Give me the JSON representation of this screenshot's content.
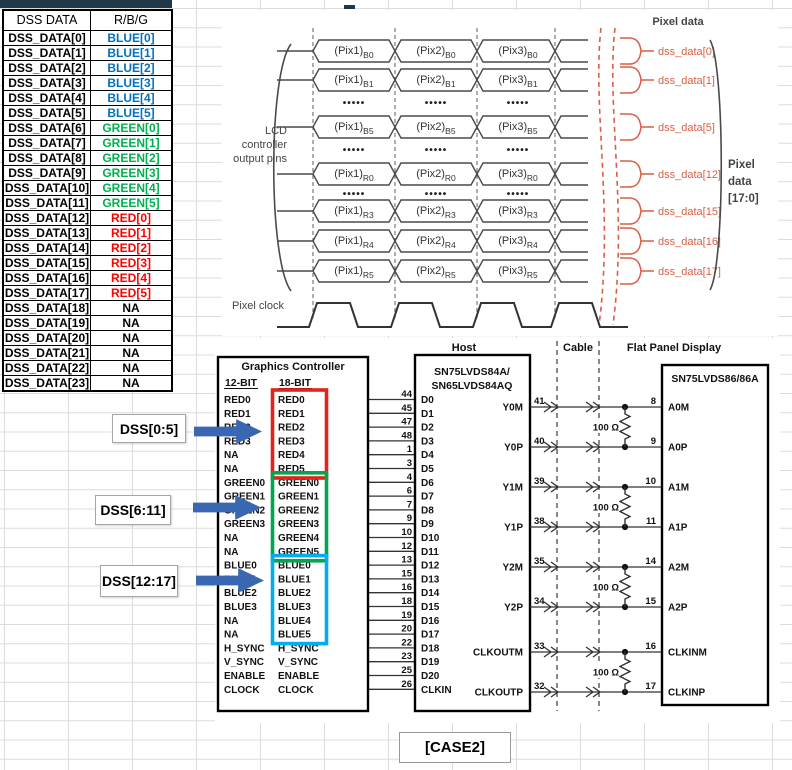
{
  "mapping_table": {
    "headers": [
      "DSS DATA",
      "R/B/G"
    ],
    "rows": [
      {
        "signal": "DSS_DATA[0]",
        "map": "BLUE[0]",
        "color": "#0070C0"
      },
      {
        "signal": "DSS_DATA[1]",
        "map": "BLUE[1]",
        "color": "#0070C0"
      },
      {
        "signal": "DSS_DATA[2]",
        "map": "BLUE[2]",
        "color": "#0070C0"
      },
      {
        "signal": "DSS_DATA[3]",
        "map": "BLUE[3]",
        "color": "#0070C0"
      },
      {
        "signal": "DSS_DATA[4]",
        "map": "BLUE[4]",
        "color": "#0070C0"
      },
      {
        "signal": "DSS_DATA[5]",
        "map": "BLUE[5]",
        "color": "#0070C0"
      },
      {
        "signal": "DSS_DATA[6]",
        "map": "GREEN[0]",
        "color": "#00B050"
      },
      {
        "signal": "DSS_DATA[7]",
        "map": "GREEN[1]",
        "color": "#00B050"
      },
      {
        "signal": "DSS_DATA[8]",
        "map": "GREEN[2]",
        "color": "#00B050"
      },
      {
        "signal": "DSS_DATA[9]",
        "map": "GREEN[3]",
        "color": "#00B050"
      },
      {
        "signal": "DSS_DATA[10]",
        "map": "GREEN[4]",
        "color": "#00B050"
      },
      {
        "signal": "DSS_DATA[11]",
        "map": "GREEN[5]",
        "color": "#00B050"
      },
      {
        "signal": "DSS_DATA[12]",
        "map": "RED[0]",
        "color": "#FF0000"
      },
      {
        "signal": "DSS_DATA[13]",
        "map": "RED[1]",
        "color": "#FF0000"
      },
      {
        "signal": "DSS_DATA[14]",
        "map": "RED[2]",
        "color": "#FF0000"
      },
      {
        "signal": "DSS_DATA[15]",
        "map": "RED[3]",
        "color": "#FF0000"
      },
      {
        "signal": "DSS_DATA[16]",
        "map": "RED[4]",
        "color": "#FF0000"
      },
      {
        "signal": "DSS_DATA[17]",
        "map": "RED[5]",
        "color": "#FF0000"
      },
      {
        "signal": "DSS_DATA[18]",
        "map": "NA",
        "color": "#000000"
      },
      {
        "signal": "DSS_DATA[19]",
        "map": "NA",
        "color": "#000000"
      },
      {
        "signal": "DSS_DATA[20]",
        "map": "NA",
        "color": "#000000"
      },
      {
        "signal": "DSS_DATA[21]",
        "map": "NA",
        "color": "#000000"
      },
      {
        "signal": "DSS_DATA[22]",
        "map": "NA",
        "color": "#000000"
      },
      {
        "signal": "DSS_DATA[23]",
        "map": "NA",
        "color": "#000000"
      }
    ]
  },
  "timing": {
    "title": "Pixel data",
    "left_label_lines": [
      "LCD",
      "controller",
      "output pins"
    ],
    "clock_label": "Pixel clock",
    "pixel_prefixes": [
      "(Pix1)",
      "(Pix2)",
      "(Pix3)"
    ],
    "dots": "•••••",
    "rows": [
      {
        "type": "bus",
        "bit": "B0",
        "dss": "dss_data[0]"
      },
      {
        "type": "bus",
        "bit": "B1",
        "dss": "dss_data[1]"
      },
      {
        "type": "dots"
      },
      {
        "type": "bus",
        "bit": "B5",
        "dss": "dss_data[5]"
      },
      {
        "type": "dots"
      },
      {
        "type": "bus",
        "bit": "R0",
        "dss": "dss_data[12]"
      },
      {
        "type": "dots"
      },
      {
        "type": "bus",
        "bit": "R3",
        "dss": "dss_data[15]"
      },
      {
        "type": "bus",
        "bit": "R4",
        "dss": "dss_data[16]"
      },
      {
        "type": "bus",
        "bit": "R5",
        "dss": "dss_data[17]"
      }
    ],
    "bus_label_lines": [
      "Pixel",
      "data",
      "[17:0]"
    ],
    "accent": "#D95F43"
  },
  "callouts": [
    {
      "label": "DSS[0:5]"
    },
    {
      "label": "DSS[6:11]"
    },
    {
      "label": "DSS[12:17]"
    }
  ],
  "callout_arrow_color": "#3A67B1",
  "circuit": {
    "section_headers": {
      "host": "Host",
      "cable": "Cable",
      "display": "Flat Panel Display"
    },
    "graphics_controller": {
      "title": "Graphics Controller",
      "columns": [
        "12-BIT",
        "18-BIT"
      ],
      "rows": [
        {
          "b12": "RED0",
          "b18": "RED0",
          "pin": "44"
        },
        {
          "b12": "RED1",
          "b18": "RED1",
          "pin": "45"
        },
        {
          "b12": "RED2",
          "b18": "RED2",
          "pin": "47"
        },
        {
          "b12": "RED3",
          "b18": "RED3",
          "pin": "48"
        },
        {
          "b12": "NA",
          "b18": "RED4",
          "pin": "1"
        },
        {
          "b12": "NA",
          "b18": "RED5",
          "pin": "3"
        },
        {
          "b12": "GREEN0",
          "b18": "GREEN0",
          "pin": "4"
        },
        {
          "b12": "GREEN1",
          "b18": "GREEN1",
          "pin": "6"
        },
        {
          "b12": "GREEN2",
          "b18": "GREEN2",
          "pin": "7"
        },
        {
          "b12": "GREEN3",
          "b18": "GREEN3",
          "pin": "9"
        },
        {
          "b12": "NA",
          "b18": "GREEN4",
          "pin": "10"
        },
        {
          "b12": "NA",
          "b18": "GREEN5",
          "pin": "12"
        },
        {
          "b12": "BLUE0",
          "b18": "BLUE0",
          "pin": "13"
        },
        {
          "b12": "BLUE1",
          "b18": "BLUE1",
          "pin": "15"
        },
        {
          "b12": "BLUE2",
          "b18": "BLUE2",
          "pin": "16"
        },
        {
          "b12": "BLUE3",
          "b18": "BLUE3",
          "pin": "18"
        },
        {
          "b12": "NA",
          "b18": "BLUE4",
          "pin": "19"
        },
        {
          "b12": "NA",
          "b18": "BLUE5",
          "pin": "20"
        },
        {
          "b12": "H_SYNC",
          "b18": "H_SYNC",
          "pin": "22"
        },
        {
          "b12": "V_SYNC",
          "b18": "V_SYNC",
          "pin": "23"
        },
        {
          "b12": "ENABLE",
          "b18": "ENABLE",
          "pin": "25"
        },
        {
          "b12": "CLOCK",
          "b18": "CLOCK",
          "pin": "26"
        }
      ],
      "group_colors": {
        "red": "#E2231A",
        "green": "#00A651",
        "blue": "#00AEEF"
      }
    },
    "host_chip": {
      "title_lines": [
        "SN75LVDS84A/",
        "SN65LVDS84AQ"
      ],
      "input_pins": [
        "D0",
        "D1",
        "D2",
        "D3",
        "D4",
        "D5",
        "D6",
        "D7",
        "D8",
        "D9",
        "D10",
        "D11",
        "D12",
        "D13",
        "D14",
        "D15",
        "D16",
        "D17",
        "D18",
        "D19",
        "D20",
        "CLKIN"
      ],
      "output_pins": [
        {
          "name": "Y0M",
          "pin": "41"
        },
        {
          "name": "Y0P",
          "pin": "40"
        },
        {
          "name": "Y1M",
          "pin": "39"
        },
        {
          "name": "Y1P",
          "pin": "38"
        },
        {
          "name": "Y2M",
          "pin": "35"
        },
        {
          "name": "Y2P",
          "pin": "34"
        },
        {
          "name": "CLKOUTM",
          "pin": "33"
        },
        {
          "name": "CLKOUTP",
          "pin": "32"
        }
      ]
    },
    "display_chip": {
      "title": "SN75LVDS86/86A",
      "input_pins": [
        {
          "name": "A0M",
          "pin": "8"
        },
        {
          "name": "A0P",
          "pin": "9"
        },
        {
          "name": "A1M",
          "pin": "10"
        },
        {
          "name": "A1P",
          "pin": "11"
        },
        {
          "name": "A2M",
          "pin": "14"
        },
        {
          "name": "A2P",
          "pin": "15"
        },
        {
          "name": "CLKINM",
          "pin": "16"
        },
        {
          "name": "CLKINP",
          "pin": "17"
        }
      ]
    },
    "resistor_label": "100 Ω"
  },
  "case_label": "[CASE2]"
}
